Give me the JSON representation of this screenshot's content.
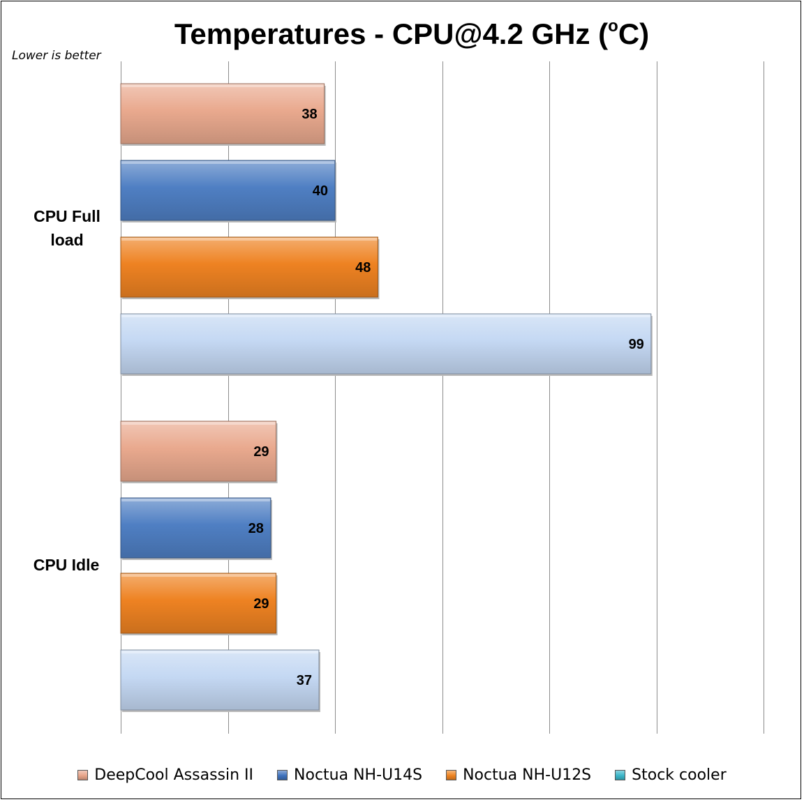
{
  "chart_data": {
    "type": "bar",
    "orientation": "horizontal",
    "title": "Temperatures - CPU@4.2 GHz (",
    "title_sup": "o",
    "title_end": "C)",
    "note": "Lower is better",
    "categories": [
      "CPU Full load",
      "CPU Idle"
    ],
    "category_lines": [
      [
        "CPU Full",
        "load"
      ],
      [
        "CPU Idle"
      ]
    ],
    "series": [
      {
        "name": "DeepCool Assassin II",
        "values": [
          38,
          29
        ],
        "color": "#e9a98e"
      },
      {
        "name": "Noctua NH-U14S",
        "values": [
          40,
          28
        ],
        "color": "#4f7fc3"
      },
      {
        "name": "Noctua NH-U12S",
        "values": [
          48,
          29
        ],
        "color": "#ee8222"
      },
      {
        "name": "Stock cooler",
        "values": [
          99,
          37
        ],
        "color": "#c4d8f3"
      }
    ],
    "legend_swatch_colors": [
      "#e8a58a",
      "#3f72bd",
      "#ef8321",
      "#3bb6c9"
    ],
    "xlim": [
      0,
      120
    ],
    "gridlines": [
      0,
      20,
      40,
      60,
      80,
      100,
      120
    ],
    "grid": true,
    "legend_position": "bottom"
  }
}
